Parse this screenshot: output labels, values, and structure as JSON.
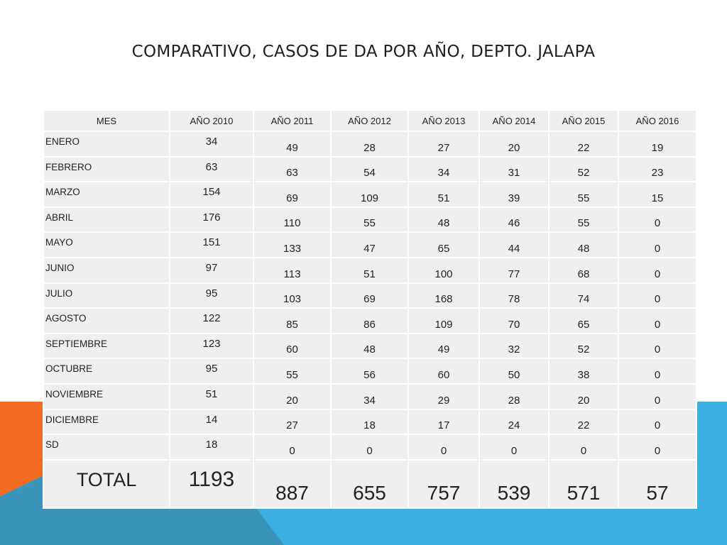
{
  "title": "COMPARATIVO, CASOS DE DA POR AÑO, DEPTO. JALAPA",
  "headers": [
    "MES",
    "AÑO  2010",
    "AÑO 2011",
    "AÑO 2012",
    "AÑO 2013",
    "AÑO 2014",
    "AÑO 2015",
    "AÑO 2016"
  ],
  "rows": [
    {
      "label": "ENERO",
      "values": [
        "34",
        "49",
        "28",
        "27",
        "20",
        "22",
        "19"
      ]
    },
    {
      "label": "FEBRERO",
      "values": [
        "63",
        "63",
        "54",
        "34",
        "31",
        "52",
        "23"
      ]
    },
    {
      "label": "MARZO",
      "values": [
        "154",
        "69",
        "109",
        "51",
        "39",
        "55",
        "15"
      ]
    },
    {
      "label": "ABRIL",
      "values": [
        "176",
        "110",
        "55",
        "48",
        "46",
        "55",
        "0"
      ]
    },
    {
      "label": "MAYO",
      "values": [
        "151",
        "133",
        "47",
        "65",
        "44",
        "48",
        "0"
      ]
    },
    {
      "label": "JUNIO",
      "values": [
        "97",
        "113",
        "51",
        "100",
        "77",
        "68",
        "0"
      ]
    },
    {
      "label": "JULIO",
      "values": [
        "95",
        "103",
        "69",
        "168",
        "78",
        "74",
        "0"
      ]
    },
    {
      "label": "AGOSTO",
      "values": [
        "122",
        "85",
        "86",
        "109",
        "70",
        "65",
        "0"
      ]
    },
    {
      "label": "SEPTIEMBRE",
      "values": [
        "123",
        "60",
        "48",
        "49",
        "32",
        "52",
        "0"
      ]
    },
    {
      "label": "OCTUBRE",
      "values": [
        "95",
        "55",
        "56",
        "60",
        "50",
        "38",
        "0"
      ]
    },
    {
      "label": "NOVIEMBRE",
      "values": [
        "51",
        "20",
        "34",
        "29",
        "28",
        "20",
        "0"
      ]
    },
    {
      "label": "DICIEMBRE",
      "values": [
        "14",
        "27",
        "18",
        "17",
        "24",
        "22",
        "0"
      ]
    },
    {
      "label": "SD",
      "values": [
        "18",
        "0",
        "0",
        "0",
        "0",
        "0",
        "0"
      ]
    }
  ],
  "total": {
    "label": "TOTAL",
    "values": [
      "1193",
      "887",
      "655",
      "757",
      "539",
      "571",
      "57"
    ]
  },
  "colors": {
    "orange": "#f26b21",
    "blue": "#3aafe0",
    "dark_blue": "#3a93b8",
    "cell_bg": "#efefef"
  }
}
